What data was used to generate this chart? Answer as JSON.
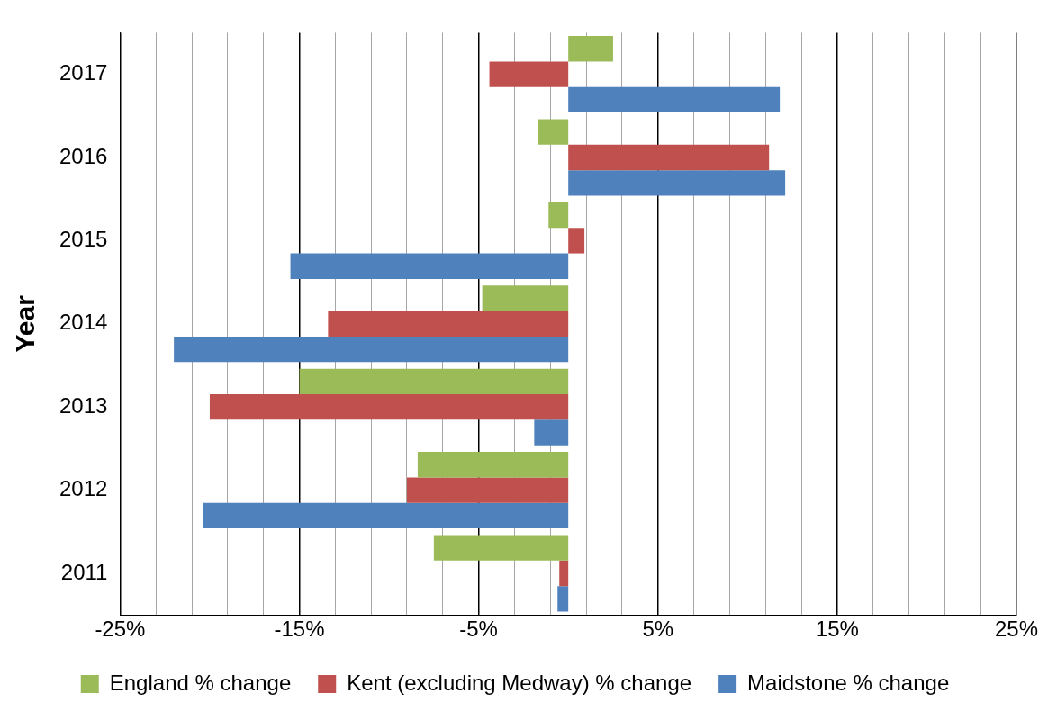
{
  "chart_data": {
    "type": "bar",
    "orientation": "horizontal",
    "ylabel": "Year",
    "categories": [
      "2017",
      "2016",
      "2015",
      "2014",
      "2013",
      "2012",
      "2011"
    ],
    "series": [
      {
        "name": "England % change",
        "color": "#9bbb59",
        "values": [
          2.5,
          -1.7,
          -1.1,
          -4.8,
          -15.0,
          -8.4,
          -7.5
        ]
      },
      {
        "name": "Kent (excluding Medway) % change",
        "color": "#c0504d",
        "values": [
          -4.4,
          11.2,
          0.9,
          -13.4,
          -20.0,
          -9.0,
          -0.5
        ]
      },
      {
        "name": "Maidstone % change",
        "color": "#4f81bd",
        "values": [
          11.8,
          12.1,
          -15.5,
          -22.0,
          -1.9,
          -20.4,
          -0.6
        ]
      }
    ],
    "xlim": [
      -25,
      25
    ],
    "xticks": [
      {
        "value": -25,
        "label": "-25%"
      },
      {
        "value": -23,
        "label": null
      },
      {
        "value": -21,
        "label": null
      },
      {
        "value": -19,
        "label": null
      },
      {
        "value": -17,
        "label": null
      },
      {
        "value": -15,
        "label": "-15%"
      },
      {
        "value": -13,
        "label": null
      },
      {
        "value": -11,
        "label": null
      },
      {
        "value": -9,
        "label": null
      },
      {
        "value": -7,
        "label": null
      },
      {
        "value": -5,
        "label": "-5%"
      },
      {
        "value": -3,
        "label": null
      },
      {
        "value": -1,
        "label": null
      },
      {
        "value": 1,
        "label": null
      },
      {
        "value": 3,
        "label": null
      },
      {
        "value": 5,
        "label": "5%"
      },
      {
        "value": 7,
        "label": null
      },
      {
        "value": 9,
        "label": null
      },
      {
        "value": 11,
        "label": null
      },
      {
        "value": 13,
        "label": null
      },
      {
        "value": 15,
        "label": "15%"
      },
      {
        "value": 17,
        "label": null
      },
      {
        "value": 19,
        "label": null
      },
      {
        "value": 21,
        "label": null
      },
      {
        "value": 23,
        "label": null
      },
      {
        "value": 25,
        "label": "25%"
      }
    ],
    "grid": "x",
    "legend": "bottom"
  }
}
